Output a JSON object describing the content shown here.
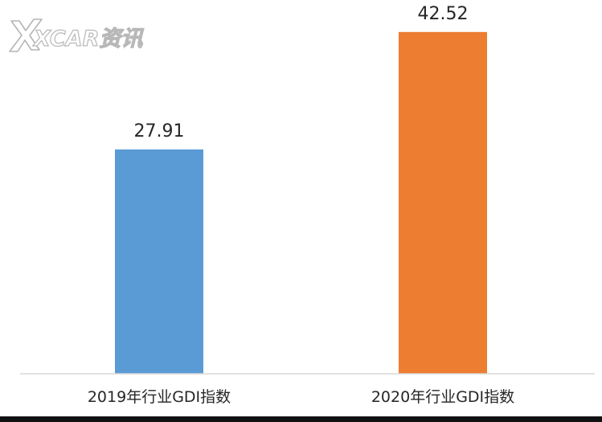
{
  "watermark": {
    "text": "XCAR资讯"
  },
  "chart_data": {
    "type": "bar",
    "categories": [
      "2019年行业GDI指数",
      "2020年行业GDI指数"
    ],
    "values": [
      27.91,
      42.52
    ],
    "value_labels": [
      "27.91",
      "42.52"
    ],
    "colors": [
      "#5b9bd5",
      "#ed7d31"
    ],
    "ylim": [
      0,
      46.5
    ],
    "grid": false,
    "legend": "none"
  }
}
